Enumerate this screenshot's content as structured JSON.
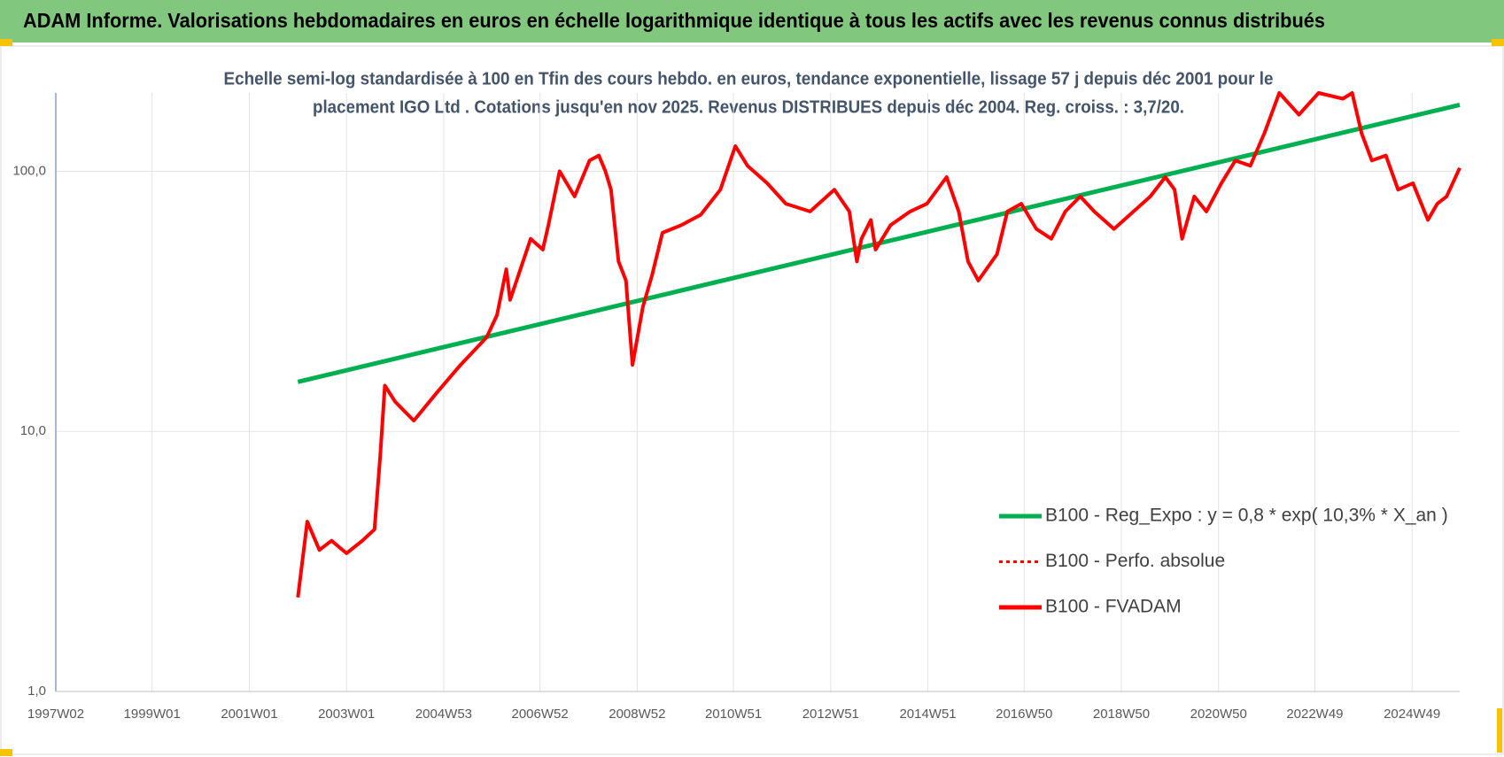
{
  "chart_data": {
    "type": "line",
    "title": "ADAM Informe. Valorisations hebdomadaires en euros en échelle logarithmique identique à tous les actifs avec les revenus connus distribués",
    "subtitle": [
      "Echelle semi-log standardisée à 100 en Tfin des cours hebdo. en euros, tendance exponentielle, lissage 57 j depuis déc 2001 pour le",
      "placement IGO Ltd . Cotations jusqu'en nov 2025. Revenus DISTRIBUES depuis déc 2004. Reg. croiss. : 3,7/20."
    ],
    "log_y": true,
    "grid": true,
    "legend": "lower right",
    "xlim": [
      "1997W02",
      "2025W48"
    ],
    "xticks": [
      "1997W02",
      "1999W01",
      "2001W01",
      "2003W01",
      "2004W53",
      "2006W52",
      "2008W52",
      "2010W51",
      "2012W51",
      "2014W51",
      "2016W50",
      "2018W50",
      "2020W50",
      "2022W49",
      "2024W49"
    ],
    "ylim": [
      1,
      200
    ],
    "yticks": [
      {
        "value": 1,
        "label": "1,0"
      },
      {
        "value": 10,
        "label": "10,0"
      },
      {
        "value": 100,
        "label": "100,0"
      }
    ],
    "series": [
      {
        "name": "B100 - Reg_Expo : y = 0,8 * exp( 10,3% *  X_an )",
        "color": "#00b050",
        "style": "solid",
        "x": [
          "2002W01",
          "2025W48"
        ],
        "values": [
          15.5,
          180
        ]
      },
      {
        "name": "B100 - Perfo. absolue",
        "color": "#ff0000",
        "style": "dotted",
        "x": [],
        "values": []
      },
      {
        "name": "B100 - FVADAM",
        "color": "#ff0000",
        "style": "solid",
        "x": [
          "2002W01",
          "2002W11",
          "2002W24",
          "2002W37",
          "2003W01",
          "2003W18",
          "2003W31",
          "2003W37",
          "2003W42",
          "2004W01",
          "2004W21",
          "2004W45",
          "2005W19",
          "2005W47",
          "2006W06",
          "2006W16",
          "2006W20",
          "2006W42",
          "2007W03",
          "2007W09",
          "2007W21",
          "2007W37",
          "2008W01",
          "2008W11",
          "2008W18",
          "2008W24",
          "2008W32",
          "2008W40",
          "2008W47",
          "2009W06",
          "2009W16",
          "2009W27",
          "2009W47",
          "2010W16",
          "2010W37",
          "2011W01",
          "2011W14",
          "2011W35",
          "2012W03",
          "2012W29",
          "2013W03",
          "2013W19",
          "2013W27",
          "2013W32",
          "2013W42",
          "2013W47",
          "2014W11",
          "2014W32",
          "2014W50",
          "2015W19",
          "2015W32",
          "2015W42",
          "2016W01",
          "2016W21",
          "2016W32",
          "2016W47",
          "2017W11",
          "2017W27",
          "2017W42",
          "2018W06",
          "2018W21",
          "2018W42",
          "2019W11",
          "2019W29",
          "2019W45",
          "2020W03",
          "2020W11",
          "2020W24",
          "2020W37",
          "2021W01",
          "2021W16",
          "2021W32",
          "2021W47",
          "2022W11",
          "2022W32",
          "2023W01",
          "2023W27",
          "2023W37",
          "2023W47",
          "2024W06",
          "2024W21",
          "2024W34",
          "2024W50",
          "2025W14",
          "2025W24",
          "2025W34",
          "2025W48"
        ],
        "values": [
          2.3,
          4.5,
          3.5,
          3.8,
          3.4,
          3.8,
          4.2,
          8,
          15,
          13,
          11,
          14,
          18,
          23,
          28,
          42,
          32,
          55,
          50,
          62,
          100,
          80,
          110,
          115,
          100,
          85,
          45,
          38,
          18,
          30,
          40,
          58,
          62,
          68,
          85,
          125,
          105,
          90,
          75,
          70,
          85,
          70,
          45,
          55,
          65,
          50,
          62,
          70,
          75,
          95,
          70,
          45,
          38,
          48,
          70,
          75,
          60,
          55,
          70,
          80,
          70,
          60,
          70,
          80,
          95,
          85,
          55,
          80,
          70,
          90,
          110,
          105,
          140,
          200,
          165,
          200,
          190,
          200,
          140,
          110,
          115,
          85,
          90,
          65,
          75,
          80,
          103
        ]
      }
    ]
  }
}
